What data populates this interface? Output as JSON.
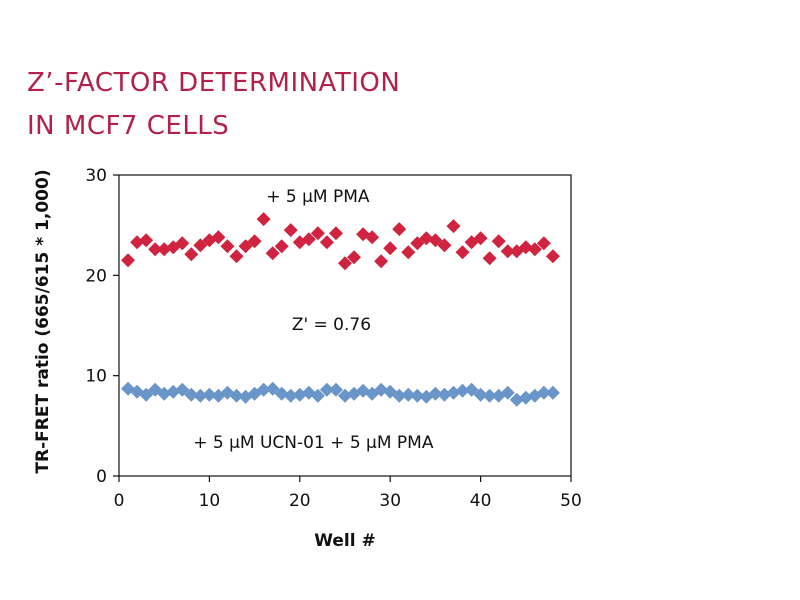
{
  "chart_data": {
    "type": "scatter",
    "title_lines": [
      "Z’-FACTOR DETERMINATION",
      "IN MCF7 CELLS"
    ],
    "xlabel": "Well #",
    "ylabel": "TR-FRET ratio (665/615 * 1,000)",
    "xlim": [
      0,
      50
    ],
    "ylim": [
      0,
      30
    ],
    "xticks": [
      0,
      10,
      20,
      30,
      40,
      50
    ],
    "yticks": [
      0,
      10,
      20,
      30
    ],
    "annotations": {
      "top": "+ 5 µM PMA",
      "middle": "Z' = 0.76",
      "bottom": "+ 5 µM UCN-01 + 5 µM PMA"
    },
    "x": [
      1,
      2,
      3,
      4,
      5,
      6,
      7,
      8,
      9,
      10,
      11,
      12,
      13,
      14,
      15,
      16,
      17,
      18,
      19,
      20,
      21,
      22,
      23,
      24,
      25,
      26,
      27,
      28,
      29,
      30,
      31,
      32,
      33,
      34,
      35,
      36,
      37,
      38,
      39,
      40,
      41,
      42,
      43,
      44,
      45,
      46,
      47,
      48
    ],
    "series": [
      {
        "name": "+ 5 µM PMA",
        "color": "#d0233f",
        "values": [
          21.5,
          23.3,
          23.5,
          22.6,
          22.6,
          22.8,
          23.2,
          22.1,
          23.0,
          23.5,
          23.8,
          22.9,
          21.9,
          22.9,
          23.4,
          25.6,
          22.2,
          22.9,
          24.5,
          23.3,
          23.6,
          24.2,
          23.3,
          24.2,
          21.2,
          21.8,
          24.1,
          23.8,
          21.4,
          22.7,
          24.6,
          22.3,
          23.2,
          23.7,
          23.5,
          23.0,
          24.9,
          22.3,
          23.3,
          23.7,
          21.7,
          23.4,
          22.4,
          22.4,
          22.8,
          22.6,
          23.2,
          21.9
        ]
      },
      {
        "name": "+ 5 µM UCN-01 + 5 µM PMA",
        "color": "#6a95c8",
        "values": [
          8.7,
          8.4,
          8.1,
          8.6,
          8.2,
          8.4,
          8.6,
          8.1,
          8.0,
          8.1,
          8.0,
          8.3,
          8.0,
          7.9,
          8.2,
          8.6,
          8.7,
          8.2,
          8.0,
          8.1,
          8.3,
          8.0,
          8.6,
          8.6,
          8.0,
          8.2,
          8.5,
          8.2,
          8.6,
          8.4,
          8.0,
          8.1,
          8.0,
          7.9,
          8.2,
          8.1,
          8.3,
          8.5,
          8.6,
          8.1,
          8.0,
          8.0,
          8.3,
          7.6,
          7.8,
          8.0,
          8.3,
          8.3
        ]
      }
    ]
  }
}
